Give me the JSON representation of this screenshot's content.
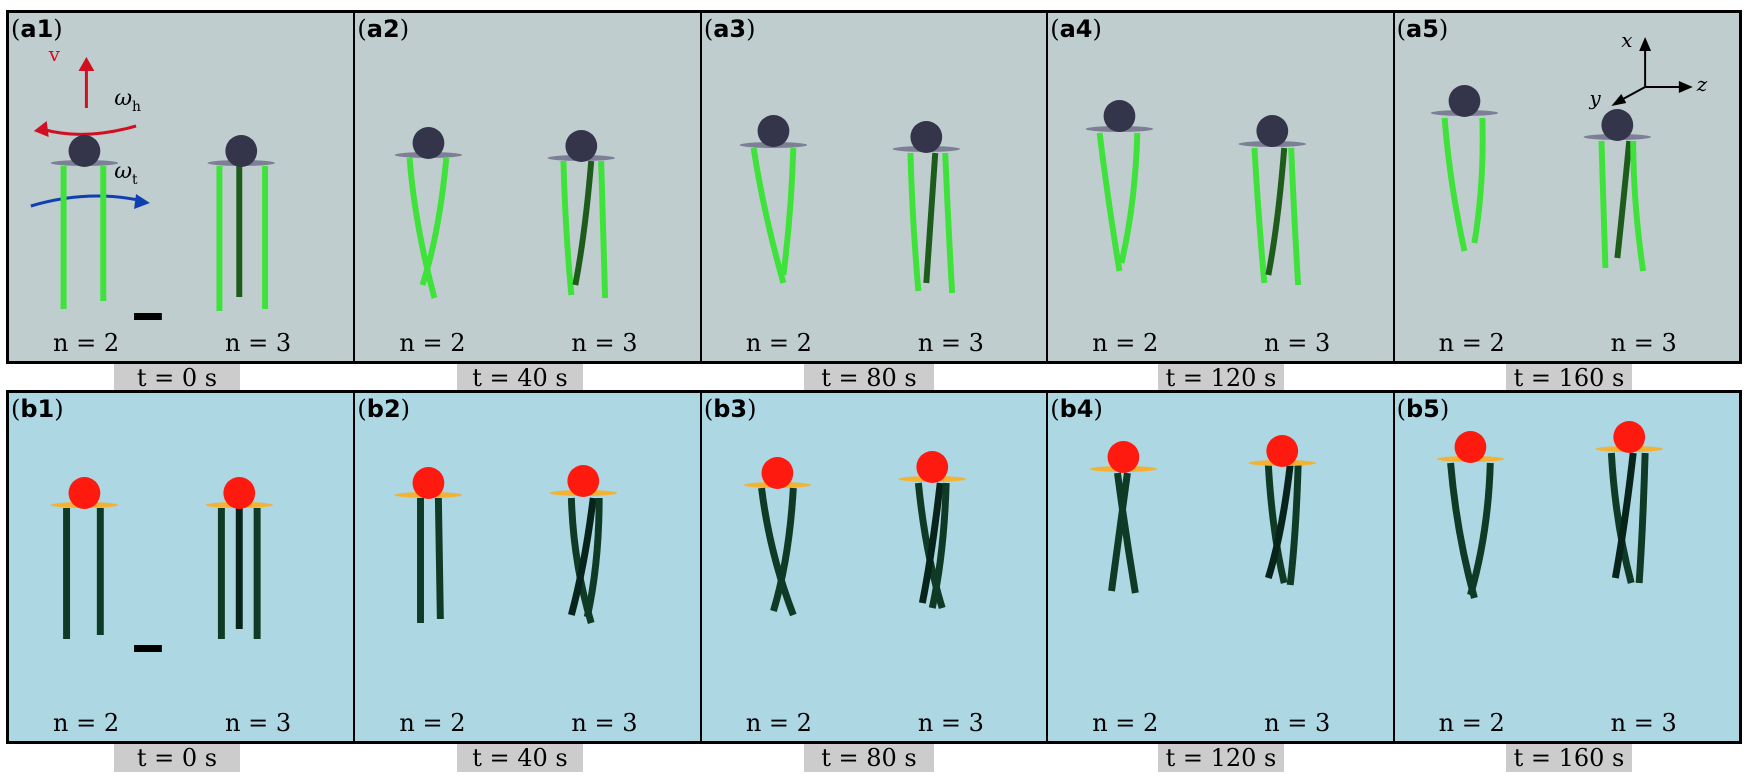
{
  "rows": [
    {
      "id": "a",
      "panels": [
        {
          "label": "a1",
          "left_caption": "n = 2",
          "right_caption": "n = 3"
        },
        {
          "label": "a2",
          "left_caption": "n = 2",
          "right_caption": "n = 3"
        },
        {
          "label": "a3",
          "left_caption": "n = 2",
          "right_caption": "n = 3"
        },
        {
          "label": "a4",
          "left_caption": "n = 2",
          "right_caption": "n = 3"
        },
        {
          "label": "a5",
          "left_caption": "n = 2",
          "right_caption": "n = 3"
        }
      ],
      "times": [
        "t = 0 s",
        "t = 40 s",
        "t = 80 s",
        "t = 120 s",
        "t = 160 s"
      ]
    },
    {
      "id": "b",
      "panels": [
        {
          "label": "b1",
          "left_caption": "n = 2",
          "right_caption": "n = 3"
        },
        {
          "label": "b2",
          "left_caption": "n = 2",
          "right_caption": "n = 3"
        },
        {
          "label": "b3",
          "left_caption": "n = 2",
          "right_caption": "n = 3"
        },
        {
          "label": "b4",
          "left_caption": "n = 2",
          "right_caption": "n = 3"
        },
        {
          "label": "b5",
          "left_caption": "n = 2",
          "right_caption": "n = 3"
        }
      ],
      "times": [
        "t = 0 s",
        "t = 40 s",
        "t = 80 s",
        "t = 120 s",
        "t = 160 s"
      ]
    }
  ],
  "annotations": {
    "velocity": "v",
    "omega_h": "ω",
    "omega_h_sub": "h",
    "omega_t": "ω",
    "omega_t_sub": "t",
    "axis_x": "x",
    "axis_y": "y",
    "axis_z": "z"
  },
  "colors": {
    "row_a_background": "#bfcdcf",
    "row_b_background": "#acd7e3",
    "row_a_flagella": "#3fe23a",
    "row_b_flagella": "#0f3a25",
    "row_a_head": "#34344a",
    "row_b_head": "#ff1a10",
    "row_a_plate": "#7d7f95",
    "row_b_plate": "#f3b233",
    "velocity_arrow": "#d01020",
    "omega_t_arrow": "#1040b0"
  }
}
